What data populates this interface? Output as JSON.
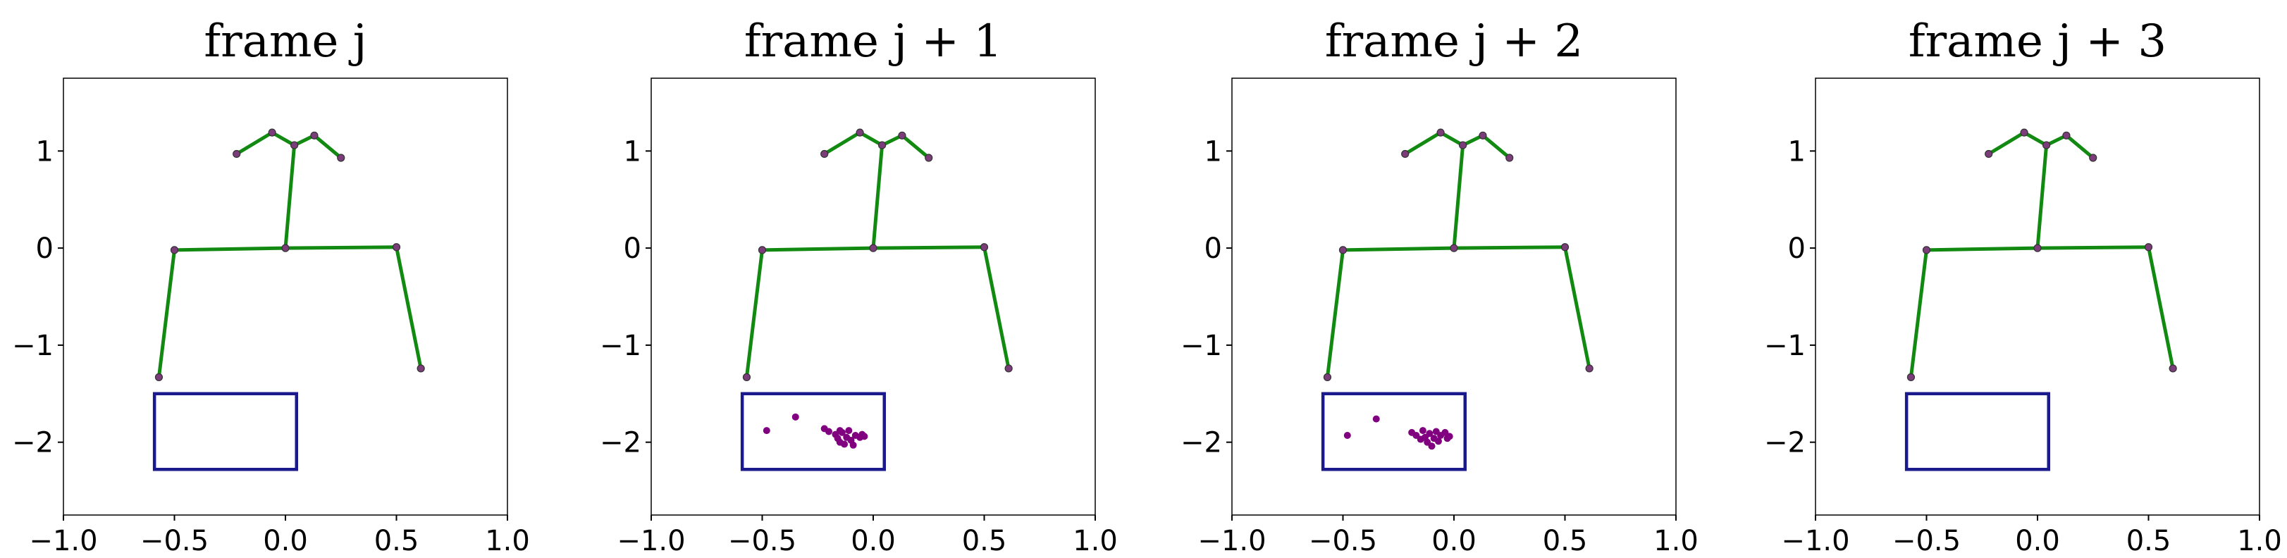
{
  "colors": {
    "bone": "#128a12",
    "joint": "#7a3d7a",
    "box": "#1a1a8c",
    "scatter": "#800080",
    "frame": "#000000"
  },
  "chart_data": [
    {
      "type": "scatter",
      "title": "frame j",
      "xlabel": "",
      "ylabel": "",
      "xlim": [
        -1.0,
        1.0
      ],
      "ylim": [
        -2.75,
        1.75
      ],
      "x_ticks": [
        -1.0,
        -0.5,
        0.0,
        0.5,
        1.0
      ],
      "x_tick_labels": [
        "−1.0",
        "−0.5",
        "0.0",
        "0.5",
        "1.0"
      ],
      "y_ticks": [
        1,
        0,
        -1,
        -2
      ],
      "y_tick_labels": [
        "1",
        "0",
        "−1",
        "−2"
      ],
      "grid": false,
      "skeleton_joints": [
        [
          -0.57,
          -1.33
        ],
        [
          -0.5,
          -0.02
        ],
        [
          0.0,
          0.0
        ],
        [
          0.5,
          0.01
        ],
        [
          0.61,
          -1.24
        ],
        [
          0.04,
          1.06
        ],
        [
          -0.22,
          0.97
        ],
        [
          -0.06,
          1.19
        ],
        [
          0.13,
          1.16
        ],
        [
          0.25,
          0.93
        ]
      ],
      "skeleton_edges": [
        [
          0,
          1
        ],
        [
          1,
          2
        ],
        [
          2,
          3
        ],
        [
          3,
          4
        ],
        [
          2,
          5
        ],
        [
          5,
          7
        ],
        [
          7,
          6
        ],
        [
          5,
          8
        ],
        [
          8,
          9
        ]
      ],
      "box": {
        "x0": -0.59,
        "x1": 0.05,
        "y0": -2.28,
        "y1": -1.5
      },
      "scatter_points": []
    },
    {
      "type": "scatter",
      "title": "frame j + 1",
      "xlabel": "",
      "ylabel": "",
      "xlim": [
        -1.0,
        1.0
      ],
      "ylim": [
        -2.75,
        1.75
      ],
      "x_ticks": [
        -1.0,
        -0.5,
        0.0,
        0.5,
        1.0
      ],
      "x_tick_labels": [
        "−1.0",
        "−0.5",
        "0.0",
        "0.5",
        "1.0"
      ],
      "y_ticks": [
        1,
        0,
        -1,
        -2
      ],
      "y_tick_labels": [
        "1",
        "0",
        "−1",
        "−2"
      ],
      "grid": false,
      "skeleton_joints": [
        [
          -0.57,
          -1.33
        ],
        [
          -0.5,
          -0.02
        ],
        [
          0.0,
          0.0
        ],
        [
          0.5,
          0.01
        ],
        [
          0.61,
          -1.24
        ],
        [
          0.04,
          1.06
        ],
        [
          -0.22,
          0.97
        ],
        [
          -0.06,
          1.19
        ],
        [
          0.13,
          1.16
        ],
        [
          0.25,
          0.93
        ]
      ],
      "skeleton_edges": [
        [
          0,
          1
        ],
        [
          1,
          2
        ],
        [
          2,
          3
        ],
        [
          3,
          4
        ],
        [
          2,
          5
        ],
        [
          5,
          7
        ],
        [
          7,
          6
        ],
        [
          5,
          8
        ],
        [
          8,
          9
        ]
      ],
      "box": {
        "x0": -0.59,
        "x1": 0.05,
        "y0": -2.28,
        "y1": -1.5
      },
      "scatter_points": [
        [
          -0.48,
          -1.88
        ],
        [
          -0.35,
          -1.74
        ],
        [
          -0.22,
          -1.86
        ],
        [
          -0.2,
          -1.89
        ],
        [
          -0.17,
          -1.92
        ],
        [
          -0.16,
          -1.96
        ],
        [
          -0.15,
          -2.0
        ],
        [
          -0.14,
          -1.9
        ],
        [
          -0.13,
          -2.02
        ],
        [
          -0.12,
          -1.95
        ],
        [
          -0.11,
          -1.88
        ],
        [
          -0.1,
          -1.98
        ],
        [
          -0.09,
          -2.03
        ],
        [
          -0.08,
          -1.93
        ],
        [
          -0.06,
          -1.95
        ],
        [
          -0.05,
          -1.92
        ],
        [
          -0.04,
          -1.94
        ],
        [
          -0.15,
          -1.88
        ]
      ]
    },
    {
      "type": "scatter",
      "title": "frame j + 2",
      "xlabel": "",
      "ylabel": "",
      "xlim": [
        -1.0,
        1.0
      ],
      "ylim": [
        -2.75,
        1.75
      ],
      "x_ticks": [
        -1.0,
        -0.5,
        0.0,
        0.5,
        1.0
      ],
      "x_tick_labels": [
        "−1.0",
        "−0.5",
        "0.0",
        "0.5",
        "1.0"
      ],
      "y_ticks": [
        1,
        0,
        -1,
        -2
      ],
      "y_tick_labels": [
        "1",
        "0",
        "−1",
        "−2"
      ],
      "grid": false,
      "skeleton_joints": [
        [
          -0.57,
          -1.33
        ],
        [
          -0.5,
          -0.02
        ],
        [
          0.0,
          0.0
        ],
        [
          0.5,
          0.01
        ],
        [
          0.61,
          -1.24
        ],
        [
          0.04,
          1.06
        ],
        [
          -0.22,
          0.97
        ],
        [
          -0.06,
          1.19
        ],
        [
          0.13,
          1.16
        ],
        [
          0.25,
          0.93
        ]
      ],
      "skeleton_edges": [
        [
          0,
          1
        ],
        [
          1,
          2
        ],
        [
          2,
          3
        ],
        [
          3,
          4
        ],
        [
          2,
          5
        ],
        [
          5,
          7
        ],
        [
          7,
          6
        ],
        [
          5,
          8
        ],
        [
          8,
          9
        ]
      ],
      "box": {
        "x0": -0.59,
        "x1": 0.05,
        "y0": -2.28,
        "y1": -1.5
      },
      "scatter_points": [
        [
          -0.48,
          -1.93
        ],
        [
          -0.35,
          -1.76
        ],
        [
          -0.19,
          -1.9
        ],
        [
          -0.17,
          -1.93
        ],
        [
          -0.15,
          -1.97
        ],
        [
          -0.14,
          -1.88
        ],
        [
          -0.13,
          -1.95
        ],
        [
          -0.12,
          -2.0
        ],
        [
          -0.11,
          -1.91
        ],
        [
          -0.1,
          -2.04
        ],
        [
          -0.09,
          -1.96
        ],
        [
          -0.08,
          -1.89
        ],
        [
          -0.07,
          -1.99
        ],
        [
          -0.06,
          -1.93
        ],
        [
          -0.04,
          -1.9
        ],
        [
          -0.03,
          -1.96
        ],
        [
          -0.02,
          -1.94
        ]
      ]
    },
    {
      "type": "scatter",
      "title": "frame j + 3",
      "xlabel": "",
      "ylabel": "",
      "xlim": [
        -1.0,
        1.0
      ],
      "ylim": [
        -2.75,
        1.75
      ],
      "x_ticks": [
        -1.0,
        -0.5,
        0.0,
        0.5,
        1.0
      ],
      "x_tick_labels": [
        "−1.0",
        "−0.5",
        "0.0",
        "0.5",
        "1.0"
      ],
      "y_ticks": [
        1,
        0,
        -1,
        -2
      ],
      "y_tick_labels": [
        "1",
        "0",
        "−1",
        "−2"
      ],
      "grid": false,
      "skeleton_joints": [
        [
          -0.57,
          -1.33
        ],
        [
          -0.5,
          -0.02
        ],
        [
          0.0,
          0.0
        ],
        [
          0.5,
          0.01
        ],
        [
          0.61,
          -1.24
        ],
        [
          0.04,
          1.06
        ],
        [
          -0.22,
          0.97
        ],
        [
          -0.06,
          1.19
        ],
        [
          0.13,
          1.16
        ],
        [
          0.25,
          0.93
        ]
      ],
      "skeleton_edges": [
        [
          0,
          1
        ],
        [
          1,
          2
        ],
        [
          2,
          3
        ],
        [
          3,
          4
        ],
        [
          2,
          5
        ],
        [
          5,
          7
        ],
        [
          7,
          6
        ],
        [
          5,
          8
        ],
        [
          8,
          9
        ]
      ],
      "box": {
        "x0": -0.59,
        "x1": 0.05,
        "y0": -2.28,
        "y1": -1.5
      },
      "scatter_points": []
    }
  ]
}
